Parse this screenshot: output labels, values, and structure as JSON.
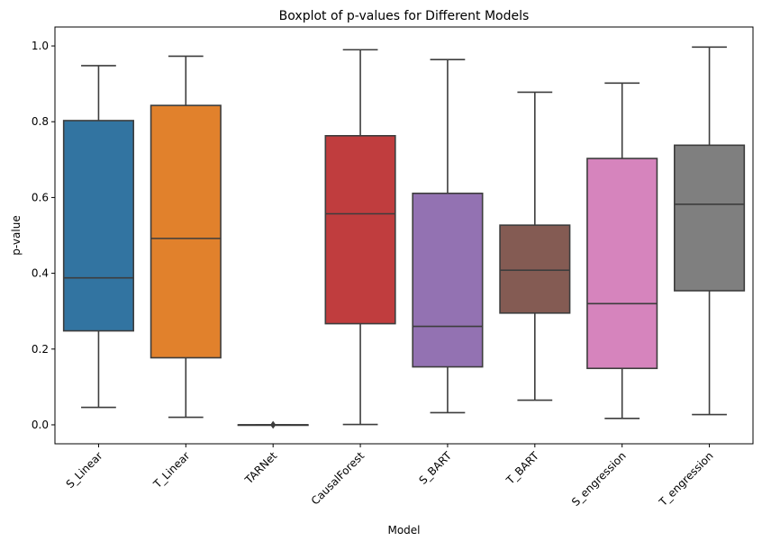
{
  "chart_data": {
    "type": "boxplot",
    "title": "Boxplot of p-values for Different Models",
    "xlabel": "Model",
    "ylabel": "p-value",
    "ylim": [
      -0.05,
      1.05
    ],
    "yticks": [
      "0.0",
      "0.2",
      "0.4",
      "0.6",
      "0.8",
      "1.0"
    ],
    "ytick_values": [
      0.0,
      0.2,
      0.4,
      0.6,
      0.8,
      1.0
    ],
    "grid": false,
    "categories": [
      "S_Linear",
      "T_Linear",
      "TARNet",
      "CausalForest",
      "S_BART",
      "T_BART",
      "S_engression",
      "T_engression"
    ],
    "boxes": [
      {
        "name": "S_Linear",
        "whisker_low": 0.046,
        "q1": 0.248,
        "median": 0.388,
        "q3": 0.803,
        "whisker_high": 0.948,
        "color": "#3274a1",
        "outliers": []
      },
      {
        "name": "T_Linear",
        "whisker_low": 0.02,
        "q1": 0.177,
        "median": 0.492,
        "q3": 0.843,
        "whisker_high": 0.973,
        "color": "#e1812c",
        "outliers": []
      },
      {
        "name": "TARNet",
        "whisker_low": 0.0,
        "q1": 0.0,
        "median": 0.0,
        "q3": 0.0,
        "whisker_high": 0.0,
        "color": "#3a923a",
        "outliers": [
          0.0,
          0.0,
          0.0
        ]
      },
      {
        "name": "CausalForest",
        "whisker_low": 0.001,
        "q1": 0.267,
        "median": 0.557,
        "q3": 0.763,
        "whisker_high": 0.99,
        "color": "#c03d3e",
        "outliers": []
      },
      {
        "name": "S_BART",
        "whisker_low": 0.032,
        "q1": 0.153,
        "median": 0.26,
        "q3": 0.611,
        "whisker_high": 0.964,
        "color": "#9372b2",
        "outliers": []
      },
      {
        "name": "T_BART",
        "whisker_low": 0.065,
        "q1": 0.295,
        "median": 0.408,
        "q3": 0.527,
        "whisker_high": 0.878,
        "color": "#845b53",
        "outliers": []
      },
      {
        "name": "S_engression",
        "whisker_low": 0.017,
        "q1": 0.149,
        "median": 0.32,
        "q3": 0.703,
        "whisker_high": 0.902,
        "color": "#d684bd",
        "outliers": []
      },
      {
        "name": "T_engression",
        "whisker_low": 0.027,
        "q1": 0.354,
        "median": 0.582,
        "q3": 0.738,
        "whisker_high": 0.997,
        "color": "#7f7f7f",
        "outliers": []
      }
    ]
  }
}
